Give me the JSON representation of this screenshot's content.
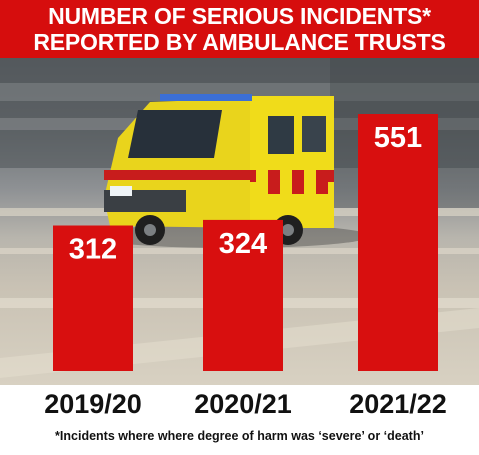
{
  "header": {
    "title_line_1": "NUMBER OF SERIOUS INCIDENTS*",
    "title_line_2": "REPORTED BY AMBULANCE TRUSTS"
  },
  "footnote": "*Incidents where where degree of harm was ‘severe’ or ‘death’",
  "colors": {
    "title_band": "#d60d0d",
    "bar": "#d80f0f",
    "value_text": "#ffffff",
    "category_text": "#111111"
  },
  "chart_data": {
    "type": "bar",
    "categories": [
      "2019/20",
      "2020/21",
      "2021/22"
    ],
    "values": [
      312,
      324,
      551
    ],
    "title": "NUMBER OF SERIOUS INCIDENTS* REPORTED BY AMBULANCE TRUSTS",
    "xlabel": "",
    "ylabel": "",
    "ylim": [
      0,
      600
    ],
    "grid": false,
    "legend": "none",
    "data_labels": "inside-top"
  }
}
